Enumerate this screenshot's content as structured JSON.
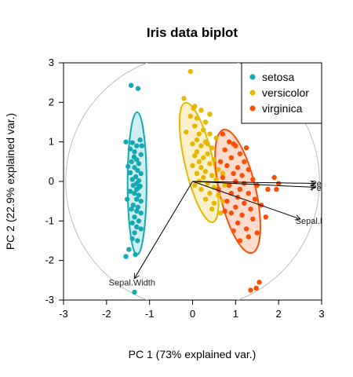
{
  "chart_data": {
    "type": "scatter",
    "title": "Iris data biplot",
    "xlabel": "PC 1 (73% explained var.)",
    "ylabel": "PC 2 (22.9% explained var.)",
    "xlim": [
      -3,
      3
    ],
    "ylim": [
      -3,
      3
    ],
    "xticks": [
      -3,
      -2,
      -1,
      0,
      1,
      2,
      3
    ],
    "yticks": [
      -3,
      -2,
      -1,
      0,
      1,
      2,
      3
    ],
    "grid": false,
    "legend_position": "top-right",
    "correlation_circle_radius": 2.95,
    "series": [
      {
        "name": "setosa",
        "color": "#13AAB4",
        "ellipse": {
          "center": [
            -1.29,
            -0.05
          ],
          "rx": 0.22,
          "ry": 1.8,
          "angle": 0
        },
        "points": [
          [
            -1.43,
            2.43
          ],
          [
            -1.55,
            1.0
          ],
          [
            -1.4,
            0.98
          ],
          [
            -1.22,
            1.05
          ],
          [
            -1.3,
            0.9
          ],
          [
            -1.45,
            0.82
          ],
          [
            -1.35,
            0.75
          ],
          [
            -1.2,
            0.68
          ],
          [
            -1.3,
            0.55
          ],
          [
            -1.42,
            0.5
          ],
          [
            -1.25,
            0.45
          ],
          [
            -1.35,
            0.35
          ],
          [
            -1.28,
            0.28
          ],
          [
            -1.45,
            0.22
          ],
          [
            -1.2,
            0.2
          ],
          [
            -1.32,
            0.12
          ],
          [
            -1.4,
            0.05
          ],
          [
            -1.25,
            0.02
          ],
          [
            -1.3,
            -0.05
          ],
          [
            -1.38,
            -0.1
          ],
          [
            -1.22,
            -0.12
          ],
          [
            -1.3,
            -0.2
          ],
          [
            -1.45,
            -0.25
          ],
          [
            -1.35,
            -0.3
          ],
          [
            -1.25,
            -0.35
          ],
          [
            -1.52,
            -0.45
          ],
          [
            -1.3,
            -0.45
          ],
          [
            -1.2,
            -0.5
          ],
          [
            -1.38,
            -0.6
          ],
          [
            -1.27,
            -0.65
          ],
          [
            -1.42,
            -0.7
          ],
          [
            -1.3,
            -0.75
          ],
          [
            -1.2,
            -0.8
          ],
          [
            -1.35,
            -0.9
          ],
          [
            -1.25,
            -1.0
          ],
          [
            -1.4,
            -1.05
          ],
          [
            -1.3,
            -1.15
          ],
          [
            -1.2,
            -1.2
          ],
          [
            -1.35,
            -1.3
          ],
          [
            -1.4,
            -1.45
          ],
          [
            -1.28,
            -1.5
          ],
          [
            -1.48,
            -1.72
          ],
          [
            -1.33,
            -1.85
          ],
          [
            -1.55,
            -1.9
          ],
          [
            -1.25,
            -0.15
          ],
          [
            -1.36,
            0.62
          ],
          [
            -1.5,
            0.38
          ],
          [
            -1.18,
            0.9
          ],
          [
            -1.27,
            2.35
          ],
          [
            -1.35,
            -2.8
          ]
        ]
      },
      {
        "name": "versicolor",
        "color": "#E7B800",
        "ellipse": {
          "center": [
            0.15,
            0.48
          ],
          "rx": 0.33,
          "ry": 1.55,
          "angle": -13
        },
        "points": [
          [
            -0.05,
            2.78
          ],
          [
            -0.2,
            2.1
          ],
          [
            0.02,
            1.85
          ],
          [
            0.2,
            1.8
          ],
          [
            -0.05,
            1.65
          ],
          [
            0.1,
            1.6
          ],
          [
            0.3,
            1.5
          ],
          [
            0.05,
            1.4
          ],
          [
            0.25,
            1.3
          ],
          [
            0.15,
            1.2
          ],
          [
            0.4,
            1.2
          ],
          [
            0.1,
            1.05
          ],
          [
            0.3,
            1.0
          ],
          [
            0.0,
            0.95
          ],
          [
            0.2,
            0.9
          ],
          [
            0.45,
            0.85
          ],
          [
            0.1,
            0.75
          ],
          [
            0.35,
            0.7
          ],
          [
            0.05,
            0.65
          ],
          [
            0.25,
            0.6
          ],
          [
            0.5,
            0.55
          ],
          [
            0.15,
            0.5
          ],
          [
            0.4,
            0.45
          ],
          [
            0.0,
            0.4
          ],
          [
            0.2,
            0.35
          ],
          [
            0.6,
            0.3
          ],
          [
            0.3,
            0.25
          ],
          [
            0.1,
            0.2
          ],
          [
            0.45,
            0.15
          ],
          [
            0.25,
            0.1
          ],
          [
            0.55,
            0.05
          ],
          [
            0.15,
            0.0
          ],
          [
            0.35,
            -0.05
          ],
          [
            0.05,
            -0.1
          ],
          [
            0.5,
            -0.15
          ],
          [
            0.2,
            -0.2
          ],
          [
            0.4,
            -0.3
          ],
          [
            0.6,
            -0.35
          ],
          [
            0.3,
            -0.45
          ],
          [
            0.5,
            -0.55
          ],
          [
            0.7,
            -0.5
          ],
          [
            0.45,
            -0.7
          ],
          [
            0.65,
            -0.8
          ],
          [
            0.4,
            1.7
          ],
          [
            0.55,
            1.1
          ],
          [
            0.7,
            0.2
          ],
          [
            -0.15,
            1.25
          ],
          [
            0.05,
            1.9
          ],
          [
            0.35,
            0.95
          ],
          [
            0.75,
            -0.1
          ]
        ]
      },
      {
        "name": "virginica",
        "color": "#FC4E07",
        "ellipse": {
          "center": [
            1.05,
            -0.25
          ],
          "rx": 0.42,
          "ry": 1.6,
          "angle": -13
        },
        "points": [
          [
            0.7,
            1.2
          ],
          [
            0.85,
            1.0
          ],
          [
            1.0,
            0.9
          ],
          [
            0.75,
            0.8
          ],
          [
            1.1,
            0.7
          ],
          [
            0.9,
            0.6
          ],
          [
            1.2,
            0.5
          ],
          [
            0.8,
            0.4
          ],
          [
            1.05,
            0.35
          ],
          [
            1.3,
            0.3
          ],
          [
            0.95,
            0.2
          ],
          [
            1.15,
            0.15
          ],
          [
            0.7,
            0.1
          ],
          [
            1.4,
            0.05
          ],
          [
            1.0,
            0.0
          ],
          [
            1.2,
            -0.05
          ],
          [
            0.85,
            -0.1
          ],
          [
            1.5,
            -0.1
          ],
          [
            1.1,
            -0.2
          ],
          [
            0.9,
            -0.3
          ],
          [
            1.3,
            -0.3
          ],
          [
            1.05,
            -0.4
          ],
          [
            1.45,
            -0.45
          ],
          [
            0.8,
            -0.5
          ],
          [
            1.2,
            -0.55
          ],
          [
            1.0,
            -0.65
          ],
          [
            1.35,
            -0.7
          ],
          [
            0.9,
            -0.8
          ],
          [
            1.15,
            -0.85
          ],
          [
            1.4,
            -0.95
          ],
          [
            1.05,
            -1.05
          ],
          [
            1.25,
            -1.2
          ],
          [
            0.95,
            -1.25
          ],
          [
            1.3,
            -1.4
          ],
          [
            1.1,
            -1.5
          ],
          [
            1.5,
            -1.3
          ],
          [
            1.6,
            -0.6
          ],
          [
            1.75,
            -0.2
          ],
          [
            1.9,
            0.1
          ],
          [
            2.0,
            -0.05
          ],
          [
            1.95,
            -0.2
          ],
          [
            0.6,
            -0.2
          ],
          [
            0.65,
            0.5
          ],
          [
            1.55,
            -2.55
          ],
          [
            1.48,
            -2.7
          ],
          [
            1.35,
            -2.75
          ],
          [
            0.95,
            0.95
          ],
          [
            1.25,
            0.85
          ],
          [
            0.75,
            -0.75
          ],
          [
            1.7,
            -0.9
          ]
        ]
      }
    ],
    "loadings": [
      {
        "label": "Sepal.Length",
        "x": 2.5,
        "y": -0.95
      },
      {
        "label": "Sepal.Width",
        "x": -1.35,
        "y": -2.45
      },
      {
        "label": "Petal.Length",
        "x": 2.85,
        "y": -0.05
      },
      {
        "label": "Petal.Width",
        "x": 2.85,
        "y": -0.15
      }
    ]
  }
}
